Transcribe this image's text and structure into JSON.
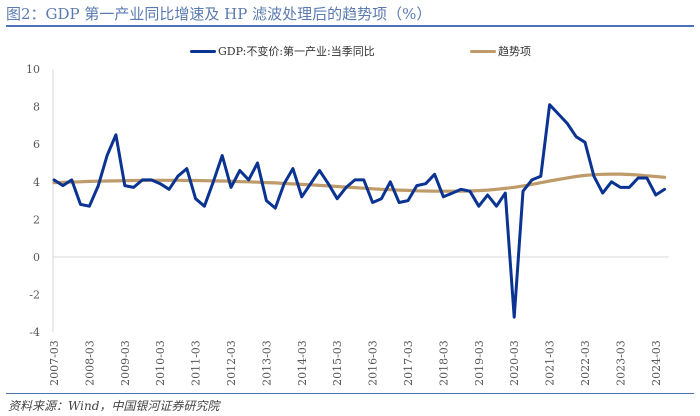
{
  "title": "图2：GDP 第一产业同比增速及 HP 滤波处理后的趋势项（%）",
  "source": "资料来源：Wind，中国银河证券研究院",
  "colors": {
    "gdp": "#0a3392",
    "trend": "#bf9b6a",
    "title": "#5a7bb0",
    "rule": "#4a72b8"
  },
  "chart_data": {
    "type": "line",
    "title": "",
    "xlabel": "",
    "ylabel": "",
    "ylim": [
      -4,
      10
    ],
    "yticks": [
      "10",
      "8",
      "6",
      "4",
      "2",
      "0",
      "-2",
      "-4"
    ],
    "ytick_values": [
      10,
      8,
      6,
      4,
      2,
      0,
      -2,
      -4
    ],
    "xtick_labels": [
      "2007-03",
      "2008-03",
      "2009-03",
      "2010-03",
      "2011-03",
      "2012-03",
      "2013-03",
      "2014-03",
      "2015-03",
      "2016-03",
      "2017-03",
      "2018-03",
      "2019-03",
      "2020-03",
      "2021-03",
      "2022-03",
      "2023-03",
      "2024-03"
    ],
    "x_start": "2007-03",
    "x_end": "2024-06",
    "frequency": "quarterly",
    "grid": false,
    "legend": "top",
    "series": [
      {
        "name": "GDP:不变价:第一产业:当季同比",
        "values": [
          4.1,
          3.8,
          4.1,
          2.8,
          2.7,
          3.8,
          5.4,
          6.5,
          3.8,
          3.7,
          4.1,
          4.1,
          3.9,
          3.6,
          4.3,
          4.7,
          3.1,
          2.7,
          4.0,
          5.4,
          3.7,
          4.6,
          4.1,
          5.0,
          3.0,
          2.6,
          3.9,
          4.7,
          3.2,
          3.9,
          4.6,
          3.9,
          3.1,
          3.7,
          4.1,
          4.1,
          2.9,
          3.1,
          4.0,
          2.9,
          3.0,
          3.8,
          3.9,
          4.4,
          3.2,
          3.4,
          3.6,
          3.5,
          2.7,
          3.3,
          2.7,
          3.4,
          -3.2,
          3.5,
          4.1,
          4.3,
          8.1,
          7.6,
          7.1,
          6.4,
          6.1,
          4.3,
          3.4,
          4.0,
          3.7,
          3.7,
          4.2,
          4.2,
          3.3,
          3.6
        ]
      },
      {
        "name": "趋势项",
        "values": [
          3.95,
          3.97,
          3.99,
          4.0,
          4.02,
          4.03,
          4.04,
          4.05,
          4.06,
          4.07,
          4.07,
          4.08,
          4.08,
          4.08,
          4.08,
          4.07,
          4.07,
          4.06,
          4.05,
          4.04,
          4.03,
          4.01,
          4.0,
          3.98,
          3.96,
          3.94,
          3.91,
          3.89,
          3.86,
          3.84,
          3.81,
          3.78,
          3.75,
          3.72,
          3.69,
          3.66,
          3.63,
          3.6,
          3.58,
          3.56,
          3.54,
          3.52,
          3.51,
          3.5,
          3.5,
          3.5,
          3.5,
          3.51,
          3.53,
          3.56,
          3.6,
          3.65,
          3.71,
          3.78,
          3.86,
          3.95,
          4.04,
          4.13,
          4.21,
          4.28,
          4.34,
          4.38,
          4.4,
          4.41,
          4.41,
          4.39,
          4.36,
          4.32,
          4.28,
          4.24
        ]
      }
    ]
  }
}
